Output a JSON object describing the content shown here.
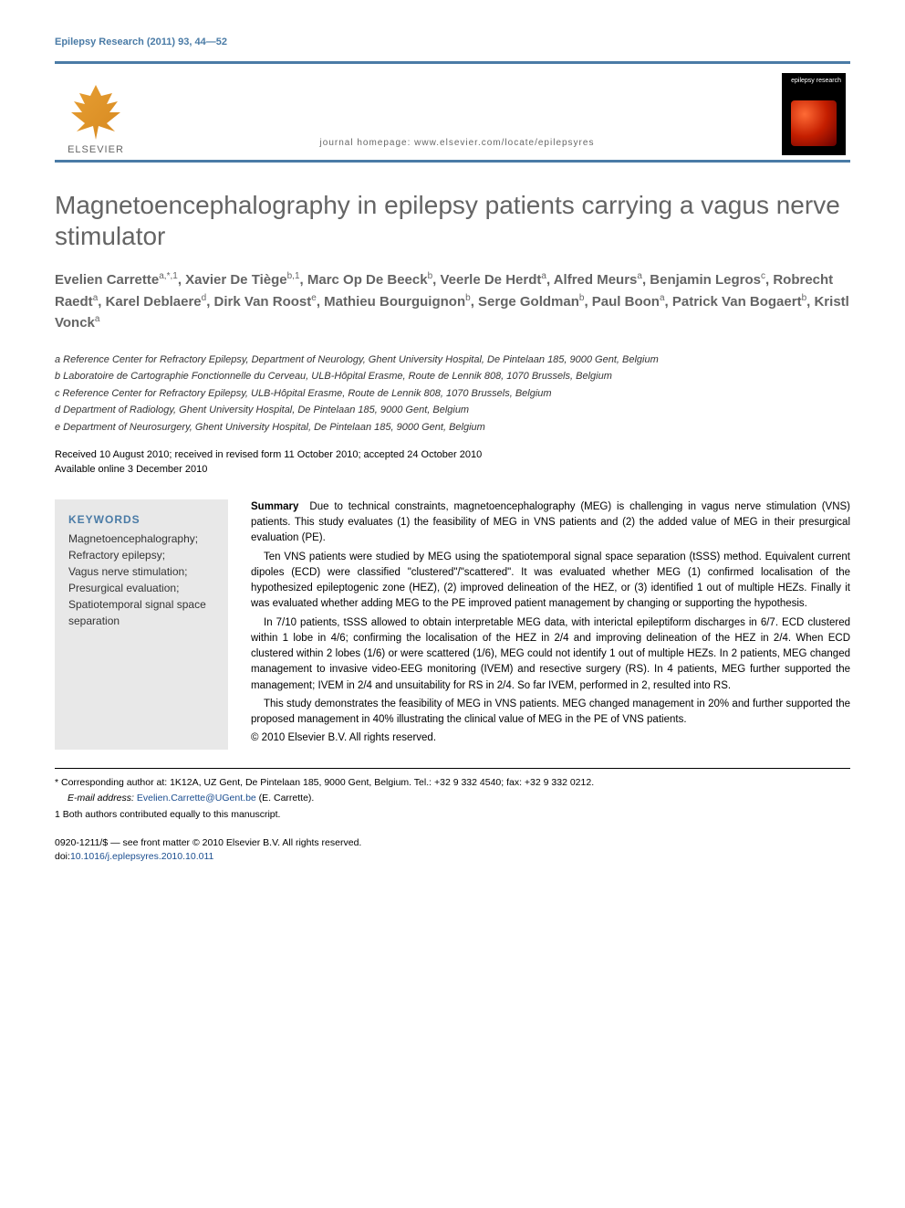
{
  "header": {
    "reference": "Epilepsy Research (2011) 93, 44—52",
    "publisher": "ELSEVIER",
    "homepage": "journal homepage: www.elsevier.com/locate/epilepsyres",
    "journal_cover_label": "epilepsy research"
  },
  "article": {
    "title": "Magnetoencephalography in epilepsy patients carrying a vagus nerve stimulator"
  },
  "authors": {
    "list": "Evelien Carrette",
    "a1_sup": "a,*,1",
    "a2": ", Xavier De Tiège",
    "a2_sup": "b,1",
    "a3": ", Marc Op De Beeck",
    "a3_sup": "b",
    "a4": ", Veerle De Herdt",
    "a4_sup": "a",
    "a5": ", Alfred Meurs",
    "a5_sup": "a",
    "a6": ", Benjamin Legros",
    "a6_sup": "c",
    "a7": ", Robrecht Raedt",
    "a7_sup": "a",
    "a8": ", Karel Deblaere",
    "a8_sup": "d",
    "a9": ", Dirk Van Roost",
    "a9_sup": "e",
    "a10": ", Mathieu Bourguignon",
    "a10_sup": "b",
    "a11": ", Serge Goldman",
    "a11_sup": "b",
    "a12": ", Paul Boon",
    "a12_sup": "a",
    "a13": ", Patrick Van Bogaert",
    "a13_sup": "b",
    "a14": ", Kristl Vonck",
    "a14_sup": "a"
  },
  "affiliations": {
    "a": "a Reference Center for Refractory Epilepsy, Department of Neurology, Ghent University Hospital, De Pintelaan 185, 9000 Gent, Belgium",
    "b": "b Laboratoire de Cartographie Fonctionnelle du Cerveau, ULB-Hôpital Erasme, Route de Lennik 808, 1070 Brussels, Belgium",
    "c": "c Reference Center for Refractory Epilepsy, ULB-Hôpital Erasme, Route de Lennik 808, 1070 Brussels, Belgium",
    "d": "d Department of Radiology, Ghent University Hospital, De Pintelaan 185, 9000 Gent, Belgium",
    "e": "e Department of Neurosurgery, Ghent University Hospital, De Pintelaan 185, 9000 Gent, Belgium"
  },
  "dates": {
    "received": "Received 10 August 2010; received in revised form 11 October 2010; accepted 24 October 2010",
    "online": "Available online 3 December 2010"
  },
  "keywords": {
    "title": "KEYWORDS",
    "items": "Magnetoencephalography;\nRefractory epilepsy;\nVagus nerve stimulation;\nPresurgical evaluation;\nSpatiotemporal signal space separation"
  },
  "summary": {
    "label": "Summary",
    "p1": "Due to technical constraints, magnetoencephalography (MEG) is challenging in vagus nerve stimulation (VNS) patients. This study evaluates (1) the feasibility of MEG in VNS patients and (2) the added value of MEG in their presurgical evaluation (PE).",
    "p2": "Ten VNS patients were studied by MEG using the spatiotemporal signal space separation (tSSS) method. Equivalent current dipoles (ECD) were classified \"clustered\"/\"scattered\". It was evaluated whether MEG (1) confirmed localisation of the hypothesized epileptogenic zone (HEZ), (2) improved delineation of the HEZ, or (3) identified 1 out of multiple HEZs. Finally it was evaluated whether adding MEG to the PE improved patient management by changing or supporting the hypothesis.",
    "p3": "In 7/10 patients, tSSS allowed to obtain interpretable MEG data, with interictal epileptiform discharges in 6/7. ECD clustered within 1 lobe in 4/6; confirming the localisation of the HEZ in 2/4 and improving delineation of the HEZ in 2/4. When ECD clustered within 2 lobes (1/6) or were scattered (1/6), MEG could not identify 1 out of multiple HEZs. In 2 patients, MEG changed management to invasive video-EEG monitoring (IVEM) and resective surgery (RS). In 4 patients, MEG further supported the management; IVEM in 2/4 and unsuitability for RS in 2/4. So far IVEM, performed in 2, resulted into RS.",
    "p4": "This study demonstrates the feasibility of MEG in VNS patients. MEG changed management in 20% and further supported the proposed management in 40% illustrating the clinical value of MEG in the PE of VNS patients.",
    "copyright": "© 2010 Elsevier B.V. All rights reserved."
  },
  "footnotes": {
    "corresponding": "* Corresponding author at: 1K12A, UZ Gent, De Pintelaan 185, 9000 Gent, Belgium. Tel.: +32 9 332 4540; fax: +32 9 332 0212.",
    "email_label": "E-mail address: ",
    "email": "Evelien.Carrette@UGent.be",
    "email_suffix": " (E. Carrette).",
    "equal": "1 Both authors contributed equally to this manuscript."
  },
  "footer": {
    "issn": "0920-1211/$ — see front matter © 2010 Elsevier B.V. All rights reserved.",
    "doi_label": "doi:",
    "doi": "10.1016/j.eplepsyres.2010.10.011"
  },
  "colors": {
    "accent": "#4a7ba6",
    "title_gray": "#646464",
    "keywords_bg": "#e8e8e8",
    "link": "#1a4d8f"
  }
}
